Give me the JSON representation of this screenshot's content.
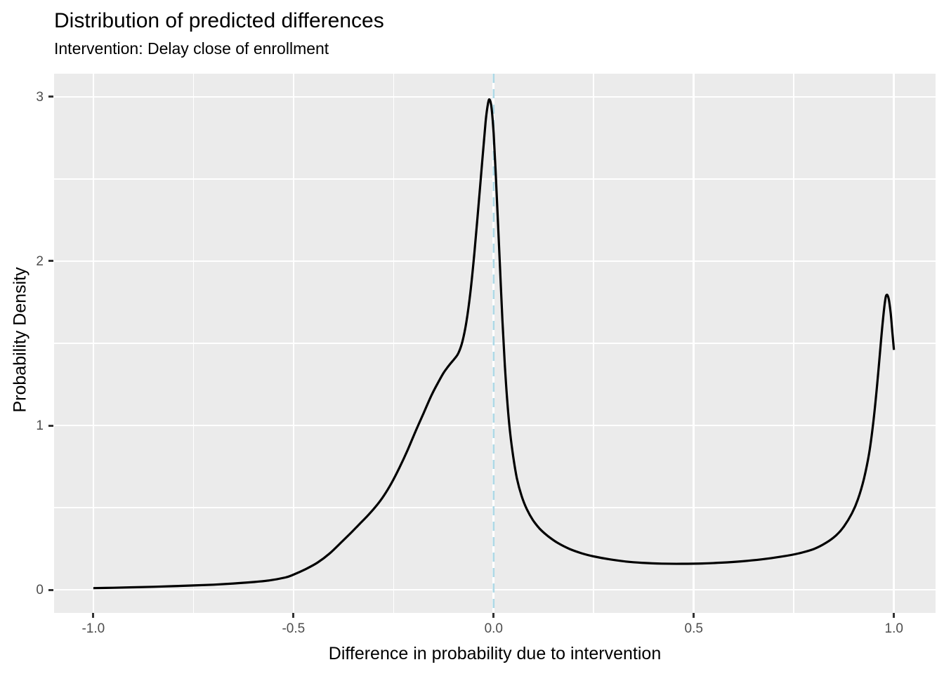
{
  "chart_data": {
    "type": "line",
    "subtype": "density",
    "title": "Distribution of predicted differences",
    "subtitle": "Intervention: Delay close of enrollment",
    "xlabel": "Difference in probability due to intervention",
    "ylabel": "Probability Density",
    "xlim": [
      -1.098,
      1.104
    ],
    "ylim": [
      -0.141,
      3.141
    ],
    "x_ticks": {
      "values": [
        -1.0,
        -0.5,
        0.0,
        0.5,
        1.0
      ],
      "labels": [
        "-1.0",
        "-0.5",
        "0.0",
        "0.5",
        "1.0"
      ]
    },
    "y_ticks": {
      "values": [
        0,
        1,
        2,
        3
      ],
      "labels": [
        "0",
        "1",
        "2",
        "3"
      ]
    },
    "x_minor_ticks": [
      -0.75,
      -0.25,
      0.25,
      0.75
    ],
    "y_minor_ticks": [
      0.5,
      1.5,
      2.5
    ],
    "grid": "major-and-minor",
    "legend_position": "none",
    "reference_line": {
      "orientation": "vertical",
      "x": 0,
      "style": "dashed",
      "color": "#ADD8E6",
      "width": 2.6,
      "dash": [
        13,
        9
      ]
    },
    "series": [
      {
        "name": "density-of-predicted-differences",
        "color": "#000000",
        "width": 3.2,
        "points": [
          [
            -1.0,
            0.01
          ],
          [
            -0.95,
            0.012
          ],
          [
            -0.9,
            0.015
          ],
          [
            -0.85,
            0.018
          ],
          [
            -0.8,
            0.022
          ],
          [
            -0.75,
            0.026
          ],
          [
            -0.7,
            0.031
          ],
          [
            -0.65,
            0.038
          ],
          [
            -0.6,
            0.047
          ],
          [
            -0.56,
            0.057
          ],
          [
            -0.52,
            0.075
          ],
          [
            -0.5,
            0.092
          ],
          [
            -0.47,
            0.125
          ],
          [
            -0.44,
            0.165
          ],
          [
            -0.41,
            0.22
          ],
          [
            -0.38,
            0.29
          ],
          [
            -0.355,
            0.35
          ],
          [
            -0.335,
            0.4
          ],
          [
            -0.315,
            0.45
          ],
          [
            -0.295,
            0.505
          ],
          [
            -0.275,
            0.57
          ],
          [
            -0.255,
            0.65
          ],
          [
            -0.235,
            0.745
          ],
          [
            -0.215,
            0.85
          ],
          [
            -0.195,
            0.965
          ],
          [
            -0.175,
            1.075
          ],
          [
            -0.155,
            1.185
          ],
          [
            -0.14,
            1.255
          ],
          [
            -0.125,
            1.32
          ],
          [
            -0.11,
            1.37
          ],
          [
            -0.098,
            1.405
          ],
          [
            -0.088,
            1.44
          ],
          [
            -0.078,
            1.51
          ],
          [
            -0.068,
            1.63
          ],
          [
            -0.058,
            1.81
          ],
          [
            -0.048,
            2.05
          ],
          [
            -0.038,
            2.33
          ],
          [
            -0.028,
            2.62
          ],
          [
            -0.02,
            2.85
          ],
          [
            -0.014,
            2.96
          ],
          [
            -0.01,
            2.983
          ],
          [
            -0.005,
            2.93
          ],
          [
            0.0,
            2.78
          ],
          [
            0.005,
            2.55
          ],
          [
            0.01,
            2.28
          ],
          [
            0.016,
            1.96
          ],
          [
            0.022,
            1.64
          ],
          [
            0.028,
            1.37
          ],
          [
            0.034,
            1.15
          ],
          [
            0.041,
            0.96
          ],
          [
            0.049,
            0.81
          ],
          [
            0.058,
            0.68
          ],
          [
            0.07,
            0.57
          ],
          [
            0.083,
            0.49
          ],
          [
            0.098,
            0.425
          ],
          [
            0.115,
            0.372
          ],
          [
            0.135,
            0.328
          ],
          [
            0.16,
            0.285
          ],
          [
            0.19,
            0.248
          ],
          [
            0.22,
            0.222
          ],
          [
            0.25,
            0.203
          ],
          [
            0.29,
            0.185
          ],
          [
            0.33,
            0.172
          ],
          [
            0.37,
            0.164
          ],
          [
            0.42,
            0.159
          ],
          [
            0.47,
            0.158
          ],
          [
            0.52,
            0.16
          ],
          [
            0.57,
            0.165
          ],
          [
            0.62,
            0.173
          ],
          [
            0.67,
            0.185
          ],
          [
            0.72,
            0.202
          ],
          [
            0.76,
            0.22
          ],
          [
            0.8,
            0.248
          ],
          [
            0.83,
            0.285
          ],
          [
            0.855,
            0.33
          ],
          [
            0.875,
            0.385
          ],
          [
            0.895,
            0.465
          ],
          [
            0.91,
            0.55
          ],
          [
            0.925,
            0.675
          ],
          [
            0.938,
            0.83
          ],
          [
            0.948,
            1.01
          ],
          [
            0.957,
            1.22
          ],
          [
            0.965,
            1.44
          ],
          [
            0.972,
            1.63
          ],
          [
            0.978,
            1.76
          ],
          [
            0.982,
            1.795
          ],
          [
            0.987,
            1.77
          ],
          [
            0.992,
            1.68
          ],
          [
            0.996,
            1.57
          ],
          [
            1.0,
            1.46
          ]
        ]
      }
    ]
  },
  "style": {
    "panel_bg": "#EBEBEB",
    "grid_color": "#FFFFFF",
    "grid_major_width": 2.6,
    "grid_minor_width": 1.6,
    "tick_mark_color": "#333333",
    "tick_label_color": "#4D4D4D",
    "text_color": "#000000"
  }
}
